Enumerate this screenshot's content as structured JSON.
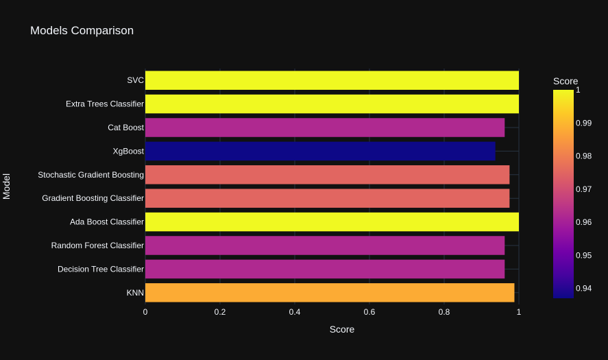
{
  "chart_data": {
    "type": "bar",
    "orientation": "horizontal",
    "title": "Models Comparison",
    "xlabel": "Score",
    "ylabel": "Model",
    "xlim": [
      0,
      1
    ],
    "x_ticks": [
      0,
      0.2,
      0.4,
      0.6,
      0.8,
      1
    ],
    "x_tick_labels": [
      "0",
      "0.2",
      "0.4",
      "0.6",
      "0.8",
      "1"
    ],
    "categories": [
      "KNN",
      "Decision Tree Classifier",
      "Random Forest Classifier",
      "Ada Boost Classifier",
      "Gradient Boosting Classifier",
      "Stochastic Gradient Boosting",
      "XgBoost",
      "Cat Boost",
      "Extra Trees Classifier",
      "SVC"
    ],
    "values": [
      0.988,
      0.962,
      0.962,
      1.0,
      0.975,
      0.975,
      0.937,
      0.962,
      1.0,
      1.0
    ],
    "grid": true,
    "colorbar": {
      "title": "Score",
      "range": [
        0.937,
        1.0
      ],
      "ticks": [
        0.94,
        0.95,
        0.96,
        0.97,
        0.98,
        0.99,
        1
      ],
      "tick_labels": [
        "0.94",
        "0.95",
        "0.96",
        "0.97",
        "0.98",
        "0.99",
        "1"
      ],
      "colorscale": [
        "#0d0887",
        "#46039f",
        "#7201a8",
        "#9c179e",
        "#bd3786",
        "#d8576b",
        "#ed7953",
        "#fb9f3a",
        "#fdca26",
        "#f0f921"
      ]
    },
    "colors": {
      "background": "#111111",
      "grid": "#283442",
      "text": "#f2f5fa"
    }
  }
}
